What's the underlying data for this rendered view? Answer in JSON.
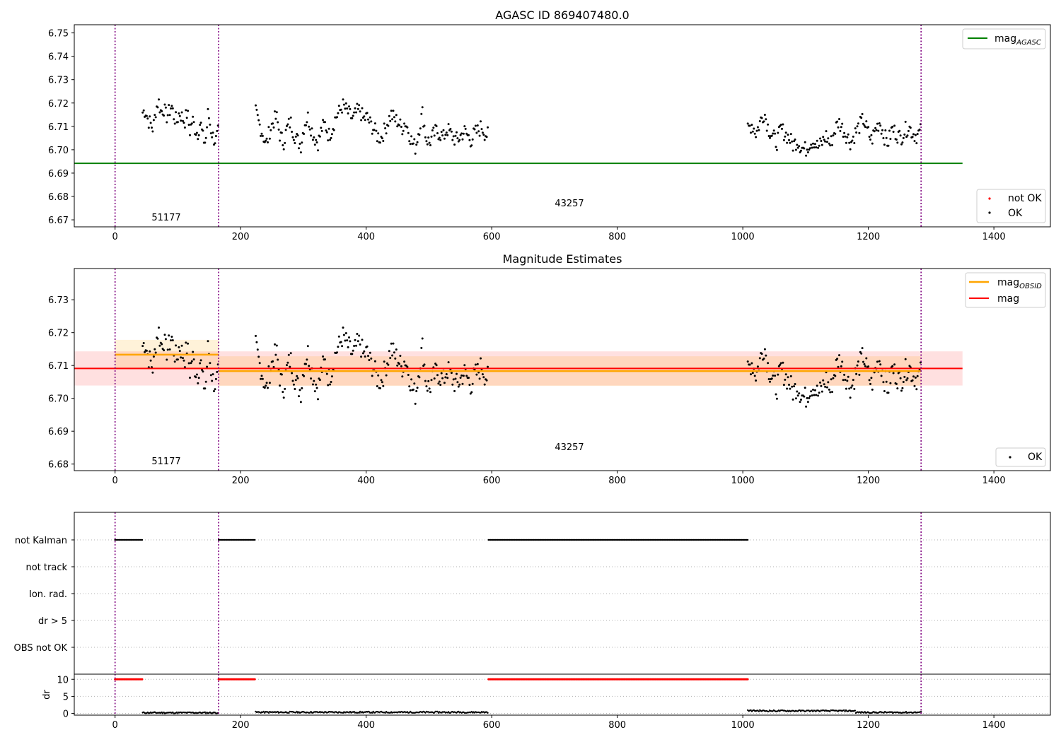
{
  "colors": {
    "ok": "#000000",
    "not_ok": "#ff0000",
    "mag_agasc": "#008000",
    "mag_obsid": "#ffa500",
    "mag": "#ff0000",
    "obs_boundary": "#800080",
    "grid": "#b0b0b0"
  },
  "chart_data": [
    {
      "type": "scatter",
      "title": "AGASC ID 869407480.0",
      "xlim": [
        -65,
        1490
      ],
      "ylim": [
        6.667,
        6.7535
      ],
      "xticks": [
        0,
        200,
        400,
        600,
        800,
        1000,
        1200,
        1400
      ],
      "yticks": [
        6.67,
        6.68,
        6.69,
        6.7,
        6.71,
        6.72,
        6.73,
        6.74,
        6.75
      ],
      "ytick_labels": [
        "6.67",
        "6.68",
        "6.69",
        "6.70",
        "6.71",
        "6.72",
        "6.73",
        "6.74",
        "6.75"
      ],
      "obs_boundaries": [
        0,
        165,
        1284
      ],
      "obs_labels": [
        {
          "text": "51177",
          "x": 82,
          "y": 6.6705
        },
        {
          "text": "43257",
          "x": 722,
          "y": 6.6765
        }
      ],
      "lines": [
        {
          "name": "mag_AGASC",
          "y": 6.6942,
          "x_range": [
            -65,
            1350
          ],
          "color": "#008000"
        }
      ],
      "legends": [
        {
          "position": "top-right",
          "entries": [
            {
              "label": "mag",
              "subscript": "AGASC",
              "kind": "line",
              "color": "#008000"
            }
          ]
        },
        {
          "position": "bottom-right",
          "entries": [
            {
              "label": "not OK",
              "kind": "dot",
              "color": "#ff0000"
            },
            {
              "label": "OK",
              "kind": "dot",
              "color": "#000000"
            }
          ]
        }
      ],
      "series": [
        {
          "name": "OK",
          "segments": [
            {
              "x_range": [
                44,
                165
              ],
              "y": [
                6.716,
                6.717,
                6.713,
                6.711,
                6.709,
                6.717,
                6.721,
                6.716,
                6.718,
                6.714,
                6.716,
                6.719,
                6.714,
                6.712,
                6.716,
                6.714,
                6.712,
                6.716,
                6.708,
                6.713,
                6.709,
                6.707,
                6.712,
                6.705,
                6.703,
                6.716,
                6.709,
                6.705,
                6.704,
                6.708
              ]
            },
            {
              "x_range": [
                224,
                595
              ],
              "y": [
                6.716,
                6.711,
                6.707,
                6.702,
                6.708,
                6.712,
                6.714,
                6.706,
                6.703,
                6.709,
                6.712,
                6.707,
                6.704,
                6.702,
                6.711,
                6.714,
                6.709,
                6.705,
                6.703,
                6.709,
                6.711,
                6.706,
                6.709,
                6.714,
                6.716,
                6.719,
                6.717,
                6.715,
                6.713,
                6.716,
                6.717,
                6.713,
                6.714,
                6.711,
                6.709,
                6.706,
                6.705,
                6.708,
                6.712,
                6.715,
                6.713,
                6.712,
                6.709,
                6.712,
                6.708,
                6.703,
                6.701,
                6.709,
                6.716,
                6.705,
                6.703,
                6.706,
                6.708,
                6.707,
                6.705,
                6.709,
                6.707,
                6.705,
                6.704,
                6.706,
                6.708,
                6.706,
                6.704,
                6.707,
                6.708,
                6.71,
                6.707,
                6.706
              ]
            },
            {
              "x_range": [
                1008,
                1284
              ],
              "y": [
                6.709,
                6.711,
                6.707,
                6.712,
                6.716,
                6.709,
                6.706,
                6.703,
                6.709,
                6.707,
                6.705,
                6.702,
                6.704,
                6.701,
                6.7,
                6.703,
                6.704,
                6.701,
                6.703,
                6.706,
                6.702,
                6.708,
                6.712,
                6.709,
                6.706,
                6.703,
                6.707,
                6.71,
                6.713,
                6.708,
                6.704,
                6.709,
                6.712,
                6.706,
                6.703,
                6.709,
                6.707,
                6.705,
                6.708,
                6.71,
                6.707,
                6.706,
                6.708
              ]
            }
          ]
        },
        {
          "name": "not OK",
          "segments": []
        }
      ]
    },
    {
      "type": "scatter",
      "title": "Magnitude Estimates",
      "xlim": [
        -65,
        1490
      ],
      "ylim": [
        6.678,
        6.7395
      ],
      "xticks": [
        0,
        200,
        400,
        600,
        800,
        1000,
        1200,
        1400
      ],
      "yticks": [
        6.68,
        6.69,
        6.7,
        6.71,
        6.72,
        6.73
      ],
      "ytick_labels": [
        "6.68",
        "6.69",
        "6.70",
        "6.71",
        "6.72",
        "6.73"
      ],
      "obs_boundaries": [
        0,
        165,
        1284
      ],
      "obs_labels": [
        {
          "text": "51177",
          "x": 82,
          "y": 6.6805
        },
        {
          "text": "43257",
          "x": 722,
          "y": 6.685
        }
      ],
      "lines": [
        {
          "name": "mag_OBSID",
          "segments": [
            {
              "x_range": [
                0,
                165
              ],
              "y": 6.7133
            },
            {
              "x_range": [
                165,
                1284
              ],
              "y": 6.7083
            }
          ],
          "band": 0.0045,
          "color": "#ffa500"
        },
        {
          "name": "mag",
          "y": 6.7091,
          "x_range": [
            -65,
            1350
          ],
          "band": 0.0052,
          "color": "#ff0000"
        }
      ],
      "legends": [
        {
          "position": "top-right",
          "entries": [
            {
              "label": "mag",
              "subscript": "OBSID",
              "kind": "line",
              "color": "#ffa500"
            },
            {
              "label": "mag",
              "kind": "line",
              "color": "#ff0000"
            }
          ]
        },
        {
          "position": "bottom-right",
          "entries": [
            {
              "label": "OK",
              "kind": "dot",
              "color": "#000000"
            }
          ]
        }
      ],
      "series": "same as panel 1"
    },
    {
      "type": "scatter",
      "ylabel_categories": [
        "not Kalman",
        "not track",
        "Ion. rad.",
        "dr > 5",
        "OBS not OK"
      ],
      "xlim": [
        -65,
        1490
      ],
      "obs_boundaries": [
        0,
        165,
        1284
      ],
      "flags": [
        {
          "category": "not Kalman",
          "x_ranges": [
            [
              0,
              44
            ],
            [
              165,
              224
            ],
            [
              595,
              1008
            ]
          ]
        }
      ],
      "grid": "horizontal dotted"
    },
    {
      "type": "scatter",
      "ylabel": "dr",
      "xlim": [
        -65,
        1490
      ],
      "ylim": [
        -0.5,
        11.5
      ],
      "xticks": [
        0,
        200,
        400,
        600,
        800,
        1000,
        1200,
        1400
      ],
      "yticks": [
        0,
        5,
        10
      ],
      "ytick_labels": [
        "0",
        "5",
        "10"
      ],
      "obs_boundaries": [
        0,
        165,
        1284
      ],
      "series": [
        {
          "name": "not OK",
          "color": "#ff0000",
          "x_ranges": [
            [
              0,
              44
            ],
            [
              165,
              224
            ],
            [
              595,
              1008
            ]
          ],
          "y": 10
        },
        {
          "name": "OK",
          "color": "#000000",
          "segments": [
            {
              "x_range": [
                44,
                165
              ],
              "y": 0.2
            },
            {
              "x_range": [
                224,
                595
              ],
              "y": 0.35
            },
            {
              "x_range": [
                1008,
                1030
              ],
              "y": 0.8
            },
            {
              "x_range": [
                1030,
                1180
              ],
              "y": 0.75
            },
            {
              "x_range": [
                1180,
                1284
              ],
              "y": 0.3
            }
          ]
        }
      ]
    }
  ],
  "tick_labels": {
    "x": [
      "0",
      "200",
      "400",
      "600",
      "800",
      "1000",
      "1200",
      "1400"
    ]
  },
  "titles": {
    "panel1": "AGASC ID 869407480.0",
    "panel2": "Magnitude Estimates"
  },
  "legend_labels": {
    "mag_agasc_main": "mag",
    "mag_agasc_sub": "AGASC",
    "not_ok": "not OK",
    "ok": "OK",
    "mag_obsid_main": "mag",
    "mag_obsid_sub": "OBSID",
    "mag": "mag"
  },
  "obs_ids": [
    "51177",
    "43257"
  ],
  "flag_labels": [
    "not Kalman",
    "not track",
    "Ion. rad.",
    "dr > 5",
    "OBS not OK"
  ],
  "dr_label": "dr"
}
